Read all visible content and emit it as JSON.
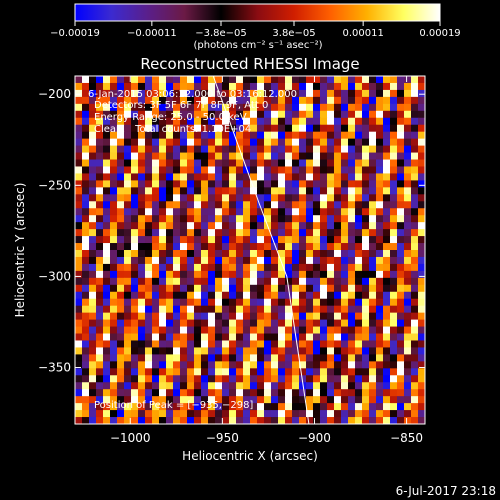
{
  "chart_data": {
    "type": "heatmap",
    "title": "Reconstructed RHESSI Image",
    "xlabel": "Heliocentric X (arcsec)",
    "ylabel": "Heliocentric Y (arcsec)",
    "xlim": [
      -1030,
      -840
    ],
    "ylim": [
      -381,
      -190
    ],
    "x_ticks": [
      -1000,
      -950,
      -900,
      -850
    ],
    "x_tick_labels": [
      "−1000",
      "−950",
      "−900",
      "−850"
    ],
    "y_ticks": [
      -200,
      -250,
      -300,
      -350
    ],
    "y_tick_labels": [
      "−200",
      "−250",
      "−300",
      "−350"
    ],
    "colorbar": {
      "range": [
        -0.00019,
        0.00019
      ],
      "ticks": [
        -0.00019,
        -0.00011,
        -3.8e-05,
        3.8e-05,
        0.00011,
        0.00019
      ],
      "tick_labels": [
        "−0.00019",
        "−0.00011",
        "−3.8e−05",
        "3.8e−05",
        "0.00011",
        "0.00019"
      ],
      "unit": "(photons cm⁻² s⁻¹ asec⁻²)",
      "colormap": [
        "#0000ff",
        "#3b2ad0",
        "#5a1f8a",
        "#6b1a45",
        "#000000",
        "#8a0c12",
        "#d01e00",
        "#ff6000",
        "#ffb000",
        "#ffff60",
        "#ffffff"
      ]
    },
    "annotations": {
      "time_range": "6-Jan-2015 03:06:12.000 to 03:16:12.000",
      "detectors": "Detectors: 3F 5F 6F 7F 8F 9F, Att 0",
      "energy_range": "Energy Range: 25.0 - 50.0 keV",
      "clean_info": "Clean    Total counts: 1.10E+04",
      "peak": "Position of Peak = [−935,−298]"
    },
    "limb_curve": [
      [
        -955,
        -190
      ],
      [
        -930,
        -260
      ],
      [
        -915,
        -300
      ],
      [
        -903,
        -381
      ]
    ],
    "grid": false,
    "legend": "none"
  },
  "footer": {
    "timestamp": "6-Jul-2017 23:18"
  }
}
